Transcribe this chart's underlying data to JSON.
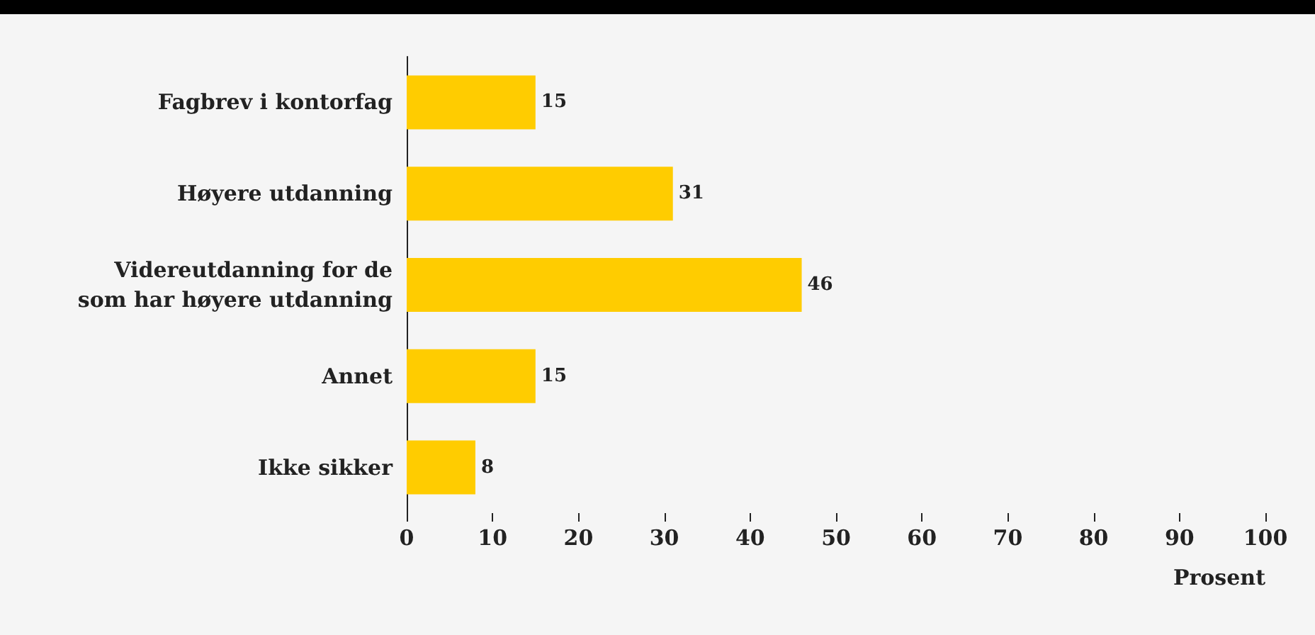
{
  "chart_data": {
    "type": "bar",
    "orientation": "horizontal",
    "xlabel": "Prosent",
    "categories": [
      "Fagbrev i kontorfag",
      "Høyere utdanning",
      "Videreutdanning for de\nsom har høyere utdanning",
      "Annet",
      "Ikke sikker"
    ],
    "values": [
      15,
      31,
      46,
      15,
      8
    ],
    "color": "#ffcc00",
    "xlim": [
      0,
      100
    ],
    "xticks": [
      0,
      10,
      20,
      30,
      40,
      50,
      60,
      70,
      80,
      90,
      100
    ],
    "grid": false,
    "data_labels": true
  }
}
